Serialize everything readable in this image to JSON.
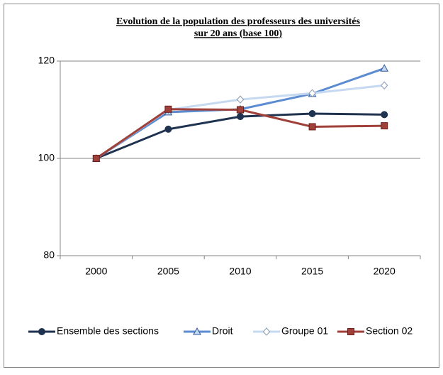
{
  "chart_data": {
    "type": "line",
    "title": [
      "Evolution de la population des professeurs des universités",
      "sur 20 ans (base 100)"
    ],
    "categories": [
      "2000",
      "2005",
      "2010",
      "2015",
      "2020"
    ],
    "series": [
      {
        "name": "Ensemble des sections",
        "color": "#1f3350",
        "marker": "circle",
        "values": [
          100,
          106,
          108.6,
          109.2,
          109
        ]
      },
      {
        "name": "Droit",
        "color": "#5b8bd0",
        "marker": "triangle",
        "values": [
          100,
          109.5,
          110.1,
          113.3,
          118.5
        ]
      },
      {
        "name": "Groupe 01",
        "color": "#c6d9f0",
        "marker": "diamond",
        "values": [
          100,
          110,
          112.1,
          113.4,
          115
        ]
      },
      {
        "name": "Section 02",
        "color": "#a0403a",
        "marker": "square",
        "values": [
          100,
          110.1,
          110,
          106.5,
          106.7
        ]
      }
    ],
    "ylim": [
      80,
      120
    ],
    "yticks": [
      80,
      100,
      120
    ],
    "grid": true,
    "legend": "bottom"
  }
}
